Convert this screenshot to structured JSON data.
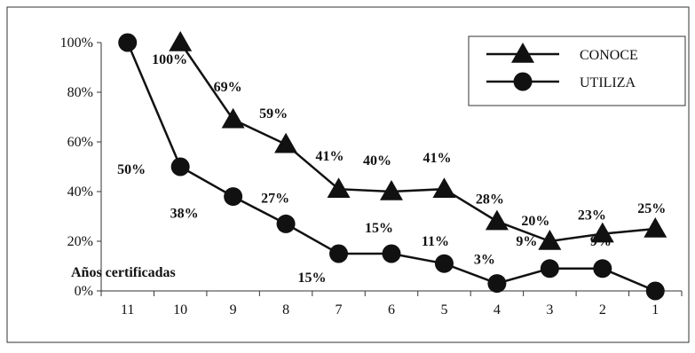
{
  "chart_data": {
    "type": "line",
    "title": "",
    "xlabel": "Años certificadas",
    "ylabel": "",
    "categories": [
      "11",
      "10",
      "9",
      "8",
      "7",
      "6",
      "5",
      "4",
      "3",
      "2",
      "1"
    ],
    "y_ticks": [
      "0%",
      "20%",
      "40%",
      "60%",
      "80%",
      "100%"
    ],
    "ylim": [
      0,
      100
    ],
    "grid": false,
    "legend_position": "top-right",
    "series": [
      {
        "name": "CONOCE",
        "marker": "triangle",
        "values": [
          null,
          100,
          69,
          59,
          41,
          40,
          41,
          28,
          20,
          23,
          25
        ],
        "labels": [
          "",
          "100%",
          "69%",
          "59%",
          "41%",
          "40%",
          "41%",
          "28%",
          "20%",
          "23%",
          "25%"
        ],
        "color": "#111111"
      },
      {
        "name": "UTILIZA",
        "marker": "circle",
        "values": [
          100,
          50,
          38,
          27,
          15,
          15,
          11,
          3,
          9,
          9,
          0
        ],
        "labels": [
          "",
          "50%",
          "38%",
          "27%",
          "15%",
          "15%",
          "11%",
          "3%",
          "9%",
          "9%",
          ""
        ],
        "color": "#111111"
      }
    ]
  }
}
